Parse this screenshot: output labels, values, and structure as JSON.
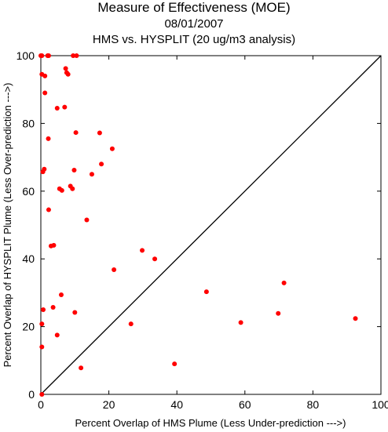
{
  "chart_data": {
    "type": "scatter",
    "title": "Measure of Effectiveness (MOE)",
    "subtitle_date": "08/01/2007",
    "subtitle_analysis": "HMS vs. HYSPLIT  (20 ug/m3 analysis)",
    "xlabel": "Percent Overlap of HMS Plume (Less Under-prediction --->)",
    "ylabel": "Percent Overlap of HYSPLIT Plume (Less Over-prediction --->)",
    "xlim": [
      0,
      100
    ],
    "ylim": [
      0,
      100
    ],
    "xticks": [
      0,
      20,
      40,
      60,
      80,
      100
    ],
    "yticks": [
      0,
      20,
      40,
      60,
      80,
      100
    ],
    "reference_line": "y = x",
    "grid": false,
    "marker_color": "#ff0000",
    "series": [
      {
        "points": [
          [
            0,
            100
          ],
          [
            0.3,
            100
          ],
          [
            2,
            100
          ],
          [
            2.3,
            100
          ],
          [
            9.5,
            100
          ],
          [
            10.5,
            100
          ],
          [
            0.3,
            94.5
          ],
          [
            1.2,
            94
          ],
          [
            7.3,
            96.2
          ],
          [
            7.6,
            95
          ],
          [
            8,
            94.5
          ],
          [
            1.2,
            89
          ],
          [
            4.8,
            84.5
          ],
          [
            7,
            84.8
          ],
          [
            2.2,
            75.5
          ],
          [
            10.3,
            77.3
          ],
          [
            17.3,
            77.2
          ],
          [
            21,
            72.5
          ],
          [
            1,
            66.5
          ],
          [
            0.6,
            65.7
          ],
          [
            9.8,
            66.2
          ],
          [
            17.8,
            68
          ],
          [
            15,
            65
          ],
          [
            5.5,
            60.7
          ],
          [
            6.2,
            60.2
          ],
          [
            8.7,
            61.5
          ],
          [
            9.3,
            60.7
          ],
          [
            2.3,
            54.5
          ],
          [
            13.5,
            51.5
          ],
          [
            3,
            43.8
          ],
          [
            3.8,
            44
          ],
          [
            29.8,
            42.5
          ],
          [
            33.5,
            40
          ],
          [
            21.5,
            36.8
          ],
          [
            6,
            29.4
          ],
          [
            3.6,
            25.7
          ],
          [
            0.7,
            25
          ],
          [
            48.7,
            30.3
          ],
          [
            71.5,
            32.9
          ],
          [
            69.8,
            23.9
          ],
          [
            10,
            24.2
          ],
          [
            0.3,
            20.8
          ],
          [
            26.5,
            20.8
          ],
          [
            58.8,
            21.2
          ],
          [
            92.5,
            22.4
          ],
          [
            4.8,
            17.5
          ],
          [
            0.3,
            14
          ],
          [
            39.3,
            9
          ],
          [
            11.8,
            7.8
          ],
          [
            0.3,
            0
          ]
        ]
      }
    ]
  }
}
